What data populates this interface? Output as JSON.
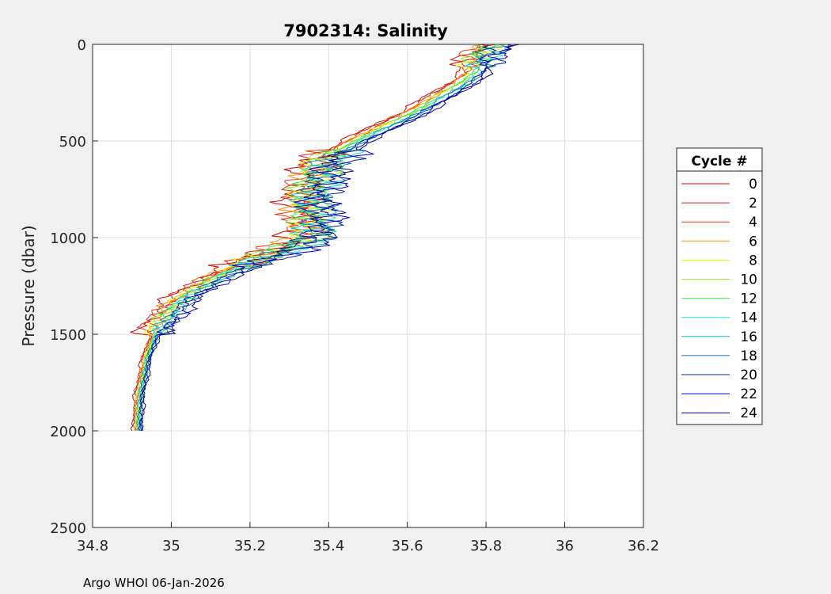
{
  "chart_data": {
    "type": "line",
    "title": "7902314:  Salinity",
    "xlabel": "",
    "ylabel": "Pressure (dbar)",
    "xlim": [
      34.8,
      36.2
    ],
    "ylim": [
      0,
      2500
    ],
    "y_reversed": true,
    "grid": true,
    "x_ticks": [
      "34.8",
      "35",
      "35.2",
      "35.4",
      "35.6",
      "35.8",
      "36",
      "36.2"
    ],
    "y_ticks": [
      "0",
      "500",
      "1000",
      "1500",
      "2000",
      "2500"
    ],
    "legend": {
      "title": "Cycle #",
      "placement": "right",
      "entries": [
        {
          "name": "0",
          "color": "#cc0000"
        },
        {
          "name": "2",
          "color": "#e0201a"
        },
        {
          "name": "4",
          "color": "#e83a10"
        },
        {
          "name": "6",
          "color": "#ff9000"
        },
        {
          "name": "8",
          "color": "#f0f000"
        },
        {
          "name": "10",
          "color": "#90f030"
        },
        {
          "name": "12",
          "color": "#30f040"
        },
        {
          "name": "14",
          "color": "#20e0d0"
        },
        {
          "name": "16",
          "color": "#10b8c8"
        },
        {
          "name": "18",
          "color": "#1070b0"
        },
        {
          "name": "20",
          "color": "#002890"
        },
        {
          "name": "22",
          "color": "#0000d0"
        },
        {
          "name": "24",
          "color": "#000080"
        }
      ]
    },
    "mean_profile": {
      "pressure": [
        0,
        50,
        100,
        150,
        200,
        250,
        300,
        350,
        400,
        450,
        500,
        550,
        600,
        650,
        700,
        750,
        800,
        850,
        900,
        950,
        1000,
        1050,
        1100,
        1150,
        1200,
        1250,
        1300,
        1350,
        1400,
        1450,
        1500,
        1550,
        1600,
        1650,
        1700,
        1750,
        1800,
        1850,
        1900,
        1950,
        2000
      ],
      "salinity": [
        35.82,
        35.79,
        35.78,
        35.77,
        35.74,
        35.7,
        35.66,
        35.62,
        35.57,
        35.52,
        35.47,
        35.43,
        35.4,
        35.38,
        35.37,
        35.36,
        35.35,
        35.35,
        35.36,
        35.36,
        35.35,
        35.3,
        35.24,
        35.18,
        35.12,
        35.08,
        35.04,
        35.01,
        34.99,
        34.97,
        34.96,
        34.95,
        34.94,
        34.935,
        34.93,
        34.925,
        34.92,
        34.918,
        34.916,
        34.915,
        34.915
      ]
    }
  },
  "footer": "Argo WHOI 06-Jan-2026"
}
